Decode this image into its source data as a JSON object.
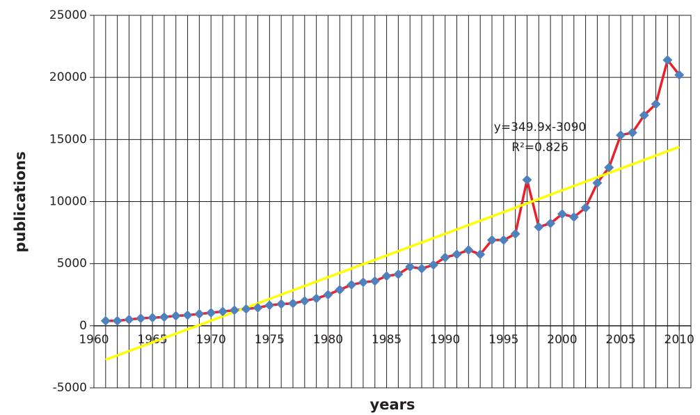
{
  "chart_data": {
    "type": "line",
    "x_label": "years",
    "y_label": "publications",
    "x": [
      1961,
      1962,
      1963,
      1964,
      1965,
      1966,
      1967,
      1968,
      1969,
      1970,
      1971,
      1972,
      1973,
      1974,
      1975,
      1976,
      1977,
      1978,
      1979,
      1980,
      1981,
      1982,
      1983,
      1984,
      1985,
      1986,
      1987,
      1988,
      1989,
      1990,
      1991,
      1992,
      1993,
      1994,
      1995,
      1996,
      1997,
      1998,
      1999,
      2000,
      2001,
      2002,
      2003,
      2004,
      2005,
      2006,
      2007,
      2008,
      2009,
      2010
    ],
    "series": [
      {
        "color": "#e8212a",
        "marker_color": "#4f81bd",
        "values": [
          400,
          400,
          500,
          600,
          650,
          700,
          800,
          850,
          950,
          1050,
          1150,
          1250,
          1350,
          1450,
          1650,
          1750,
          1800,
          2000,
          2200,
          2500,
          2900,
          3300,
          3500,
          3600,
          4000,
          4150,
          4750,
          4600,
          4900,
          5500,
          5750,
          6100,
          5750,
          6900,
          6900,
          7400,
          11750,
          7950,
          8250,
          9000,
          8750,
          9500,
          11500,
          12750,
          15350,
          15550,
          16950,
          17850,
          21400,
          20200
        ]
      }
    ],
    "trendline": {
      "color": "#ffff00",
      "x": [
        1961,
        2010
      ],
      "values": [
        -2739,
        14405
      ],
      "equation": "y=349.9x-3090",
      "r2_label": "R²=0.826"
    },
    "xlim": [
      1960,
      2011
    ],
    "xticks": [
      1960,
      1965,
      1970,
      1975,
      1980,
      1985,
      1990,
      1995,
      2000,
      2005,
      2010
    ],
    "xgrid_step": 1,
    "ylim": [
      -5000,
      25000
    ],
    "yticks": [
      -5000,
      0,
      5000,
      10000,
      15000,
      20000,
      25000
    ],
    "grid": true
  }
}
